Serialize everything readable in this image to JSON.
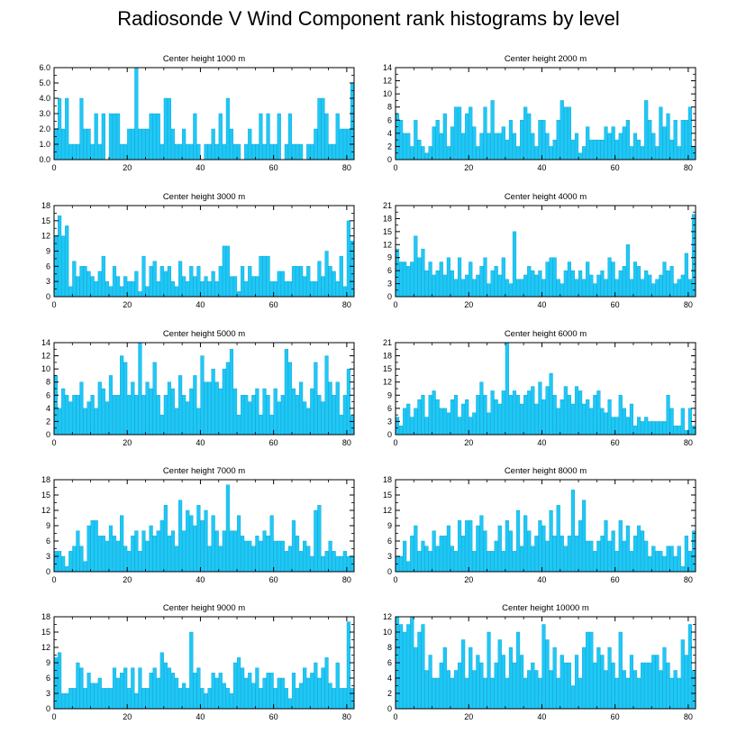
{
  "title": "Radiosonde V Wind Component rank histograms by level",
  "colors": {
    "bar": "#1ec8f5",
    "bar_edge": "#0a9fd6",
    "axis": "#000000"
  },
  "chart_data": [
    {
      "type": "bar",
      "title": "Center height 1000 m",
      "xlim": [
        0,
        82
      ],
      "ylim": [
        0,
        6
      ],
      "xticks": [
        0,
        20,
        40,
        60,
        80
      ],
      "xtick_labels": [
        "0",
        "20",
        "40",
        "60",
        "80"
      ],
      "yticks": [
        0,
        1,
        2,
        3,
        4,
        5,
        6
      ],
      "ytick_labels": [
        "0.0",
        "1.0",
        "2.0",
        "3.0",
        "4.0",
        "5.0",
        "6.0"
      ],
      "values": [
        2,
        4,
        2,
        4,
        1,
        1,
        1,
        4,
        2,
        2,
        1,
        3,
        1,
        3,
        0,
        3,
        3,
        3,
        1,
        1,
        2,
        2,
        6,
        2,
        2,
        2,
        3,
        3,
        3,
        1,
        4,
        4,
        2,
        1,
        1,
        2,
        1,
        1,
        3,
        1,
        0,
        1,
        1,
        2,
        1,
        3,
        1,
        4,
        2,
        1,
        1,
        0,
        1,
        2,
        1,
        1,
        3,
        1,
        3,
        1,
        1,
        3,
        0,
        1,
        3,
        1,
        1,
        1,
        0,
        1,
        1,
        2,
        4,
        4,
        3,
        1,
        1,
        3,
        2,
        2,
        2,
        5
      ]
    },
    {
      "type": "bar",
      "title": "Center height 2000 m",
      "xlim": [
        0,
        82
      ],
      "ylim": [
        0,
        14
      ],
      "xticks": [
        0,
        20,
        40,
        60,
        80
      ],
      "xtick_labels": [
        "0",
        "20",
        "40",
        "60",
        "80"
      ],
      "yticks": [
        0,
        2,
        4,
        6,
        8,
        10,
        12,
        14
      ],
      "ytick_labels": [
        "0",
        "2",
        "4",
        "6",
        "8",
        "10",
        "12",
        "14"
      ],
      "values": [
        7,
        6,
        4,
        4,
        2,
        6,
        3,
        2,
        1,
        2,
        5,
        6,
        4,
        7,
        2,
        5,
        8,
        8,
        4,
        7,
        8,
        5,
        2,
        4,
        8,
        4,
        9,
        4,
        4,
        5,
        3,
        6,
        4,
        2,
        6,
        8,
        7,
        4,
        2,
        6,
        6,
        4,
        2,
        3,
        6,
        9,
        8,
        8,
        3,
        4,
        1,
        2,
        5,
        3,
        3,
        3,
        3,
        5,
        4,
        5,
        3,
        4,
        5,
        6,
        2,
        4,
        3,
        2,
        9,
        6,
        4,
        2,
        8,
        5,
        7,
        3,
        6,
        2,
        6,
        6,
        8,
        2
      ]
    },
    {
      "type": "bar",
      "title": "Center height 3000 m",
      "xlim": [
        0,
        82
      ],
      "ylim": [
        0,
        18
      ],
      "xticks": [
        0,
        20,
        40,
        60,
        80
      ],
      "xtick_labels": [
        "0",
        "20",
        "40",
        "60",
        "80"
      ],
      "yticks": [
        0,
        3,
        6,
        9,
        12,
        15,
        18
      ],
      "ytick_labels": [
        "0",
        "3",
        "6",
        "9",
        "12",
        "15",
        "18"
      ],
      "values": [
        12,
        16,
        12,
        14,
        2,
        7,
        4,
        6,
        6,
        5,
        4,
        3,
        5,
        8,
        3,
        2,
        6,
        4,
        2,
        4,
        3,
        3,
        5,
        1,
        8,
        2,
        6,
        7,
        3,
        6,
        5,
        6,
        3,
        2,
        7,
        4,
        3,
        6,
        4,
        6,
        3,
        4,
        3,
        5,
        3,
        6,
        10,
        10,
        4,
        4,
        1,
        6,
        3,
        6,
        4,
        4,
        8,
        8,
        8,
        3,
        3,
        5,
        5,
        3,
        3,
        6,
        6,
        6,
        4,
        6,
        3,
        3,
        7,
        4,
        9,
        6,
        5,
        3,
        8,
        2,
        15,
        11
      ]
    },
    {
      "type": "bar",
      "title": "Center height 4000 m",
      "xlim": [
        0,
        82
      ],
      "ylim": [
        0,
        21
      ],
      "xticks": [
        0,
        20,
        40,
        60,
        80
      ],
      "xtick_labels": [
        "0",
        "20",
        "40",
        "60",
        "80"
      ],
      "yticks": [
        0,
        3,
        6,
        9,
        12,
        15,
        18,
        21
      ],
      "ytick_labels": [
        "0",
        "3",
        "6",
        "9",
        "12",
        "15",
        "18",
        "21"
      ],
      "values": [
        11,
        8,
        8,
        7,
        8,
        14,
        9,
        11,
        6,
        8,
        5,
        6,
        8,
        5,
        9,
        6,
        4,
        9,
        4,
        5,
        8,
        4,
        5,
        7,
        9,
        3,
        6,
        7,
        5,
        9,
        4,
        3,
        15,
        4,
        4,
        5,
        7,
        6,
        5,
        6,
        4,
        8,
        9,
        9,
        4,
        3,
        6,
        8,
        6,
        4,
        6,
        4,
        8,
        5,
        3,
        5,
        6,
        4,
        9,
        8,
        4,
        6,
        7,
        12,
        4,
        8,
        7,
        4,
        6,
        5,
        3,
        4,
        5,
        8,
        6,
        7,
        3,
        4,
        5,
        10,
        4,
        19
      ]
    },
    {
      "type": "bar",
      "title": "Center height 5000 m",
      "xlim": [
        0,
        82
      ],
      "ylim": [
        0,
        14
      ],
      "xticks": [
        0,
        20,
        40,
        60,
        80
      ],
      "xtick_labels": [
        "0",
        "20",
        "40",
        "60",
        "80"
      ],
      "yticks": [
        0,
        2,
        4,
        6,
        8,
        10,
        12,
        14
      ],
      "ytick_labels": [
        "0",
        "2",
        "4",
        "6",
        "8",
        "10",
        "12",
        "14"
      ],
      "values": [
        9,
        4,
        7,
        6,
        5,
        6,
        6,
        8,
        4,
        5,
        6,
        4,
        8,
        7,
        5,
        9,
        6,
        6,
        12,
        11,
        6,
        8,
        6,
        14,
        6,
        8,
        7,
        11,
        6,
        3,
        6,
        8,
        7,
        4,
        9,
        6,
        5,
        7,
        9,
        4,
        12,
        8,
        8,
        10,
        8,
        7,
        10,
        11,
        13,
        7,
        3,
        6,
        6,
        5,
        6,
        7,
        3,
        7,
        6,
        3,
        7,
        5,
        6,
        13,
        11,
        7,
        6,
        8,
        5,
        4,
        7,
        11,
        6,
        5,
        12,
        8,
        6,
        8,
        3,
        6,
        10,
        3
      ]
    },
    {
      "type": "bar",
      "title": "Center height 6000 m",
      "xlim": [
        0,
        82
      ],
      "ylim": [
        0,
        21
      ],
      "xticks": [
        0,
        20,
        40,
        60,
        80
      ],
      "xtick_labels": [
        "0",
        "20",
        "40",
        "60",
        "80"
      ],
      "yticks": [
        0,
        3,
        6,
        9,
        12,
        15,
        18,
        21
      ],
      "ytick_labels": [
        "0",
        "3",
        "6",
        "9",
        "12",
        "15",
        "18",
        "21"
      ],
      "values": [
        4,
        2,
        6,
        7,
        4,
        6,
        8,
        9,
        4,
        9,
        10,
        8,
        6,
        6,
        5,
        8,
        9,
        4,
        7,
        8,
        4,
        5,
        9,
        12,
        9,
        5,
        10,
        8,
        7,
        10,
        21,
        9,
        10,
        9,
        7,
        9,
        10,
        11,
        7,
        12,
        8,
        11,
        14,
        9,
        6,
        8,
        11,
        9,
        7,
        11,
        10,
        7,
        8,
        6,
        9,
        10,
        6,
        5,
        8,
        4,
        4,
        9,
        6,
        4,
        7,
        2,
        4,
        3,
        4,
        3,
        3,
        3,
        3,
        3,
        9,
        6,
        2,
        2,
        6,
        1,
        6,
        2
      ]
    },
    {
      "type": "bar",
      "title": "Center height 7000 m",
      "xlim": [
        0,
        82
      ],
      "ylim": [
        0,
        18
      ],
      "xticks": [
        0,
        20,
        40,
        60,
        80
      ],
      "xtick_labels": [
        "0",
        "20",
        "40",
        "60",
        "80"
      ],
      "yticks": [
        0,
        3,
        6,
        9,
        12,
        15,
        18
      ],
      "ytick_labels": [
        "0",
        "3",
        "6",
        "9",
        "12",
        "15",
        "18"
      ],
      "values": [
        4,
        4,
        3,
        1,
        4,
        5,
        8,
        5,
        2,
        9,
        10,
        10,
        7,
        7,
        6,
        9,
        7,
        6,
        11,
        5,
        4,
        7,
        8,
        4,
        8,
        6,
        9,
        7,
        8,
        10,
        13,
        7,
        8,
        5,
        14,
        8,
        12,
        11,
        9,
        13,
        10,
        12,
        5,
        11,
        8,
        5,
        8,
        17,
        8,
        8,
        11,
        7,
        6,
        6,
        5,
        7,
        6,
        8,
        7,
        11,
        6,
        6,
        6,
        4,
        5,
        10,
        7,
        4,
        6,
        5,
        3,
        12,
        13,
        3,
        4,
        6,
        4,
        3,
        3,
        4,
        3,
        3
      ]
    },
    {
      "type": "bar",
      "title": "Center height 8000 m",
      "xlim": [
        0,
        82
      ],
      "ylim": [
        0,
        18
      ],
      "xticks": [
        0,
        20,
        40,
        60,
        80
      ],
      "xtick_labels": [
        "0",
        "20",
        "40",
        "60",
        "80"
      ],
      "yticks": [
        0,
        3,
        6,
        9,
        12,
        15,
        18
      ],
      "ytick_labels": [
        "0",
        "3",
        "6",
        "9",
        "12",
        "15",
        "18"
      ],
      "values": [
        3,
        3,
        6,
        2,
        7,
        9,
        4,
        6,
        5,
        4,
        8,
        5,
        7,
        7,
        9,
        5,
        4,
        10,
        7,
        10,
        10,
        4,
        9,
        11,
        8,
        4,
        4,
        6,
        9,
        4,
        10,
        8,
        4,
        12,
        5,
        11,
        8,
        5,
        7,
        10,
        9,
        6,
        12,
        7,
        13,
        7,
        5,
        7,
        16,
        7,
        10,
        14,
        6,
        6,
        4,
        6,
        7,
        10,
        6,
        8,
        4,
        10,
        6,
        9,
        4,
        7,
        9,
        8,
        6,
        3,
        5,
        4,
        4,
        3,
        5,
        5,
        3,
        5,
        1,
        7,
        4,
        8
      ]
    },
    {
      "type": "bar",
      "title": "Center height 9000 m",
      "xlim": [
        0,
        82
      ],
      "ylim": [
        0,
        18
      ],
      "xticks": [
        0,
        20,
        40,
        60,
        80
      ],
      "xtick_labels": [
        "0",
        "20",
        "40",
        "60",
        "80"
      ],
      "yticks": [
        0,
        3,
        6,
        9,
        12,
        15,
        18
      ],
      "ytick_labels": [
        "0",
        "3",
        "6",
        "9",
        "12",
        "15",
        "18"
      ],
      "values": [
        10,
        11,
        3,
        3,
        4,
        4,
        9,
        8,
        4,
        7,
        5,
        5,
        6,
        4,
        4,
        4,
        8,
        6,
        7,
        8,
        4,
        8,
        3,
        8,
        4,
        4,
        7,
        8,
        6,
        11,
        9,
        8,
        7,
        6,
        4,
        5,
        4,
        15,
        7,
        8,
        4,
        3,
        4,
        7,
        6,
        7,
        5,
        4,
        3,
        9,
        10,
        8,
        6,
        7,
        5,
        8,
        4,
        6,
        7,
        7,
        4,
        6,
        6,
        4,
        2,
        7,
        4,
        5,
        8,
        6,
        7,
        9,
        6,
        8,
        10,
        5,
        4,
        9,
        4,
        4,
        17,
        4
      ]
    },
    {
      "type": "bar",
      "title": "Center height 10000 m",
      "xlim": [
        0,
        82
      ],
      "ylim": [
        0,
        12
      ],
      "xticks": [
        0,
        20,
        40,
        60,
        80
      ],
      "xtick_labels": [
        "0",
        "20",
        "40",
        "60",
        "80"
      ],
      "yticks": [
        0,
        2,
        4,
        6,
        8,
        10,
        12
      ],
      "ytick_labels": [
        "0",
        "2",
        "4",
        "6",
        "8",
        "10",
        "12"
      ],
      "values": [
        12,
        11,
        10,
        11,
        12,
        8,
        10,
        11,
        5,
        7,
        4,
        4,
        6,
        8,
        5,
        4,
        5,
        6,
        9,
        4,
        8,
        5,
        7,
        6,
        4,
        10,
        4,
        6,
        9,
        7,
        4,
        8,
        6,
        10,
        7,
        4,
        5,
        6,
        5,
        4,
        11,
        9,
        5,
        8,
        4,
        7,
        6,
        6,
        3,
        7,
        4,
        8,
        10,
        10,
        6,
        8,
        7,
        5,
        8,
        6,
        4,
        10,
        5,
        4,
        7,
        5,
        4,
        6,
        6,
        6,
        7,
        7,
        5,
        8,
        6,
        4,
        5,
        4,
        9,
        7,
        11,
        5
      ]
    }
  ]
}
